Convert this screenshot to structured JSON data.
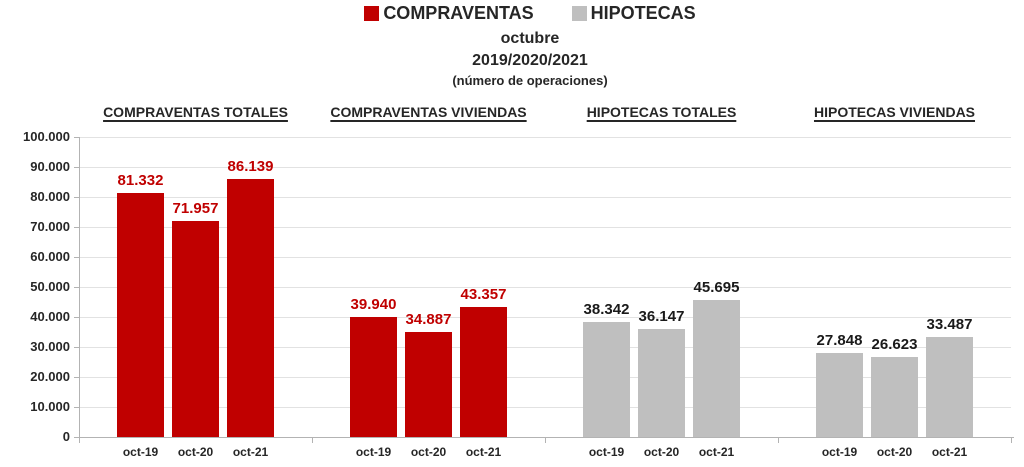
{
  "legend": {
    "items": [
      {
        "label": "COMPRAVENTAS",
        "color": "#c00000"
      },
      {
        "label": "HIPOTECAS",
        "color": "#bfbfbf"
      }
    ]
  },
  "title": {
    "month": "octubre",
    "years": "2019/2020/2021",
    "note": "(número de operaciones)"
  },
  "chart_data": {
    "type": "bar",
    "categories": [
      "oct-19",
      "oct-20",
      "oct-21"
    ],
    "ylim": [
      0,
      100000
    ],
    "ytick_step": 10000,
    "ytick_labels": [
      "0",
      "10.000",
      "20.000",
      "30.000",
      "40.000",
      "50.000",
      "60.000",
      "70.000",
      "80.000",
      "90.000",
      "100.000"
    ],
    "grid": true,
    "legend_position": "top",
    "groups": [
      {
        "header": "COMPRAVENTAS TOTALES",
        "series": "COMPRAVENTAS",
        "bar_color": "#c00000",
        "label_color": "#c00000",
        "values": [
          81332,
          71957,
          86139
        ],
        "value_labels": [
          "81.332",
          "71.957",
          "86.139"
        ]
      },
      {
        "header": "COMPRAVENTAS VIVIENDAS",
        "series": "COMPRAVENTAS",
        "bar_color": "#c00000",
        "label_color": "#c00000",
        "values": [
          39940,
          34887,
          43357
        ],
        "value_labels": [
          "39.940",
          "34.887",
          "43.357"
        ]
      },
      {
        "header": "HIPOTECAS TOTALES",
        "series": "HIPOTECAS",
        "bar_color": "#bfbfbf",
        "label_color": "#1a1a1a",
        "values": [
          38342,
          36147,
          45695
        ],
        "value_labels": [
          "38.342",
          "36.147",
          "45.695"
        ]
      },
      {
        "header": "HIPOTECAS VIVIENDAS",
        "series": "HIPOTECAS",
        "bar_color": "#bfbfbf",
        "label_color": "#1a1a1a",
        "values": [
          27848,
          26623,
          33487
        ],
        "value_labels": [
          "27.848",
          "26.623",
          "33.487"
        ]
      }
    ]
  }
}
